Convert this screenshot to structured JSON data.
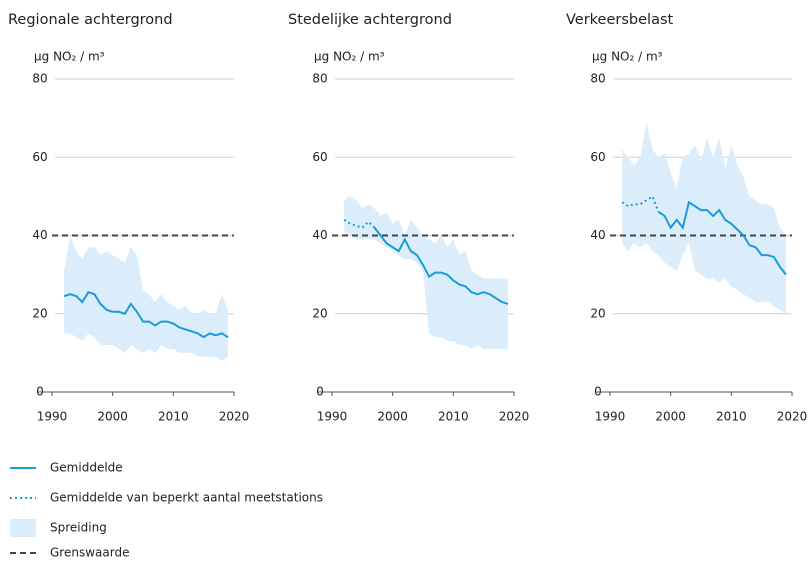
{
  "chart_data": [
    {
      "type": "line",
      "title": "Regionale achtergrond",
      "ylabel": "µg NO₂ / m³",
      "x": [
        1992,
        1993,
        1994,
        1995,
        1996,
        1997,
        1998,
        1999,
        2000,
        2001,
        2002,
        2003,
        2004,
        2005,
        2006,
        2007,
        2008,
        2009,
        2010,
        2011,
        2012,
        2013,
        2014,
        2015,
        2016,
        2017,
        2018,
        2019
      ],
      "mean": [
        24.5,
        25,
        24.5,
        23,
        25.5,
        25,
        22.5,
        21,
        20.5,
        20.5,
        20,
        22.5,
        20.5,
        18,
        18,
        17,
        18,
        18,
        17.5,
        16.5,
        16,
        15.5,
        15,
        14,
        15,
        14.5,
        15,
        14
      ],
      "mean_limited": [
        null,
        null,
        null,
        null,
        null,
        null,
        null,
        null,
        null,
        null,
        null,
        null,
        null,
        null,
        null,
        null,
        null,
        null,
        null,
        null,
        null,
        null,
        null,
        null,
        null,
        null,
        null,
        null
      ],
      "spread_high": [
        31,
        40,
        36,
        34,
        37,
        37,
        35,
        36,
        35,
        34,
        33,
        37,
        35,
        26,
        25,
        23,
        25,
        23,
        22,
        21,
        22,
        20,
        20,
        21,
        20,
        20,
        25,
        21
      ],
      "spread_low": [
        15,
        15,
        14,
        13,
        15,
        14,
        12,
        12,
        12,
        11,
        10,
        12,
        11,
        10,
        11,
        10,
        12,
        11,
        11,
        10,
        10,
        10,
        9,
        9,
        9,
        9,
        8,
        9
      ],
      "limit": 40,
      "xlim": [
        1990,
        2020
      ],
      "xticks": [
        1990,
        2000,
        2010,
        2020
      ],
      "ylim": [
        0,
        80
      ],
      "yticks": [
        0,
        20,
        40,
        60,
        80
      ],
      "grid": true
    },
    {
      "type": "line",
      "title": "Stedelijke achtergrond",
      "ylabel": "µg NO₂ / m³",
      "x": [
        1992,
        1993,
        1994,
        1995,
        1996,
        1997,
        1998,
        1999,
        2000,
        2001,
        2002,
        2003,
        2004,
        2005,
        2006,
        2007,
        2008,
        2009,
        2010,
        2011,
        2012,
        2013,
        2014,
        2015,
        2016,
        2017,
        2018,
        2019
      ],
      "mean": [
        null,
        null,
        null,
        null,
        null,
        42,
        40,
        38,
        37,
        36,
        39,
        36,
        35,
        32.5,
        29.5,
        30.5,
        30.5,
        30,
        28.5,
        27.5,
        27,
        25.5,
        25,
        25.5,
        25,
        24,
        23,
        22.5
      ],
      "mean_limited": [
        44,
        43,
        42.5,
        42,
        43.5,
        42,
        null,
        null,
        null,
        null,
        null,
        null,
        null,
        null,
        null,
        null,
        null,
        null,
        null,
        null,
        null,
        null,
        null,
        null,
        null,
        null,
        null,
        null
      ],
      "spread_high": [
        49,
        50,
        49,
        47,
        48,
        47,
        45,
        46,
        43,
        44,
        40,
        44,
        42,
        40,
        39,
        38,
        40,
        37,
        39,
        35,
        36,
        31,
        30,
        29,
        29,
        29,
        29,
        29
      ],
      "spread_low": [
        40,
        40,
        39,
        39,
        39,
        39,
        38,
        37,
        36,
        35,
        34,
        34,
        33,
        31,
        15,
        14,
        14,
        13,
        13,
        12,
        12,
        11,
        12,
        11,
        11,
        11,
        11,
        11
      ],
      "limit": 40,
      "xlim": [
        1990,
        2020
      ],
      "xticks": [
        1990,
        2000,
        2010,
        2020
      ],
      "ylim": [
        0,
        80
      ],
      "yticks": [
        0,
        20,
        40,
        60,
        80
      ],
      "grid": true
    },
    {
      "type": "line",
      "title": "Verkeersbelast",
      "ylabel": "µg NO₂ / m³",
      "x": [
        1992,
        1993,
        1994,
        1995,
        1996,
        1997,
        1998,
        1999,
        2000,
        2001,
        2002,
        2003,
        2004,
        2005,
        2006,
        2007,
        2008,
        2009,
        2010,
        2011,
        2012,
        2013,
        2014,
        2015,
        2016,
        2017,
        2018,
        2019
      ],
      "mean": [
        null,
        null,
        null,
        null,
        null,
        null,
        46,
        45,
        42,
        44,
        42,
        48.5,
        47.5,
        46.5,
        46.5,
        45,
        46.5,
        44,
        43,
        41.5,
        40,
        37.5,
        37,
        35,
        35,
        34.5,
        32,
        30
      ],
      "mean_limited": [
        48.5,
        47.5,
        48,
        48,
        49,
        50,
        46,
        null,
        null,
        null,
        null,
        null,
        null,
        null,
        null,
        null,
        null,
        null,
        null,
        null,
        null,
        null,
        null,
        null,
        null,
        null,
        null,
        null
      ],
      "spread_high": [
        62,
        60,
        58,
        60,
        69,
        62,
        60,
        61,
        56,
        52,
        60,
        61,
        63,
        59,
        65,
        60,
        65,
        57,
        63,
        58,
        55,
        50,
        49,
        48,
        48,
        47,
        42,
        40
      ],
      "spread_low": [
        38,
        36,
        38,
        37,
        38,
        36,
        35,
        33,
        32,
        31,
        35,
        38,
        31,
        30,
        29,
        29,
        28,
        29,
        27,
        26,
        25,
        24,
        23,
        23,
        23,
        22,
        21,
        20
      ],
      "limit": 40,
      "xlim": [
        1990,
        2020
      ],
      "xticks": [
        1990,
        2000,
        2010,
        2020
      ],
      "ylim": [
        0,
        80
      ],
      "yticks": [
        0,
        20,
        40,
        60,
        80
      ],
      "grid": true
    }
  ],
  "legend": [
    {
      "label": "Gemiddelde",
      "color": "#1a9cd8",
      "style": "solid"
    },
    {
      "label": "Gemiddelde van beperkt aantal meetstations",
      "color": "#1a9cd8",
      "style": "dotted"
    },
    {
      "label": "Spreiding",
      "color": "#dbedfb",
      "style": "area"
    },
    {
      "label": "Grenswaarde",
      "color": "#444444",
      "style": "dashed"
    }
  ]
}
